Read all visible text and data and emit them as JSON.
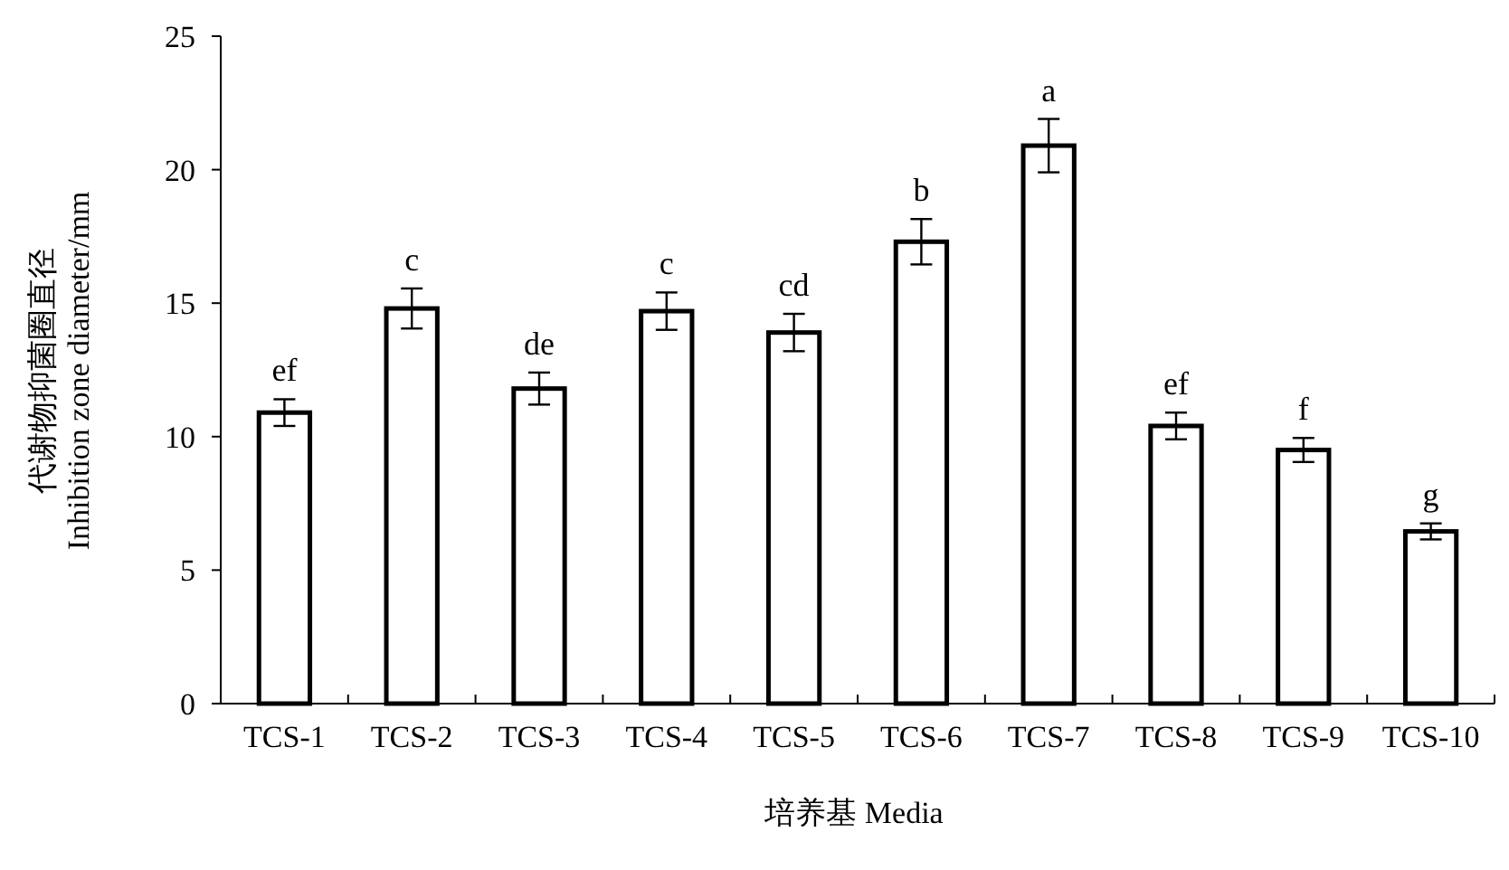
{
  "chart_data": {
    "type": "bar",
    "xlabel": "培养基 Media",
    "ylabel": "代谢物抑菌圈直径\nInhibition zone diameter/mm",
    "categories": [
      "TCS-1",
      "TCS-2",
      "TCS-3",
      "TCS-4",
      "TCS-5",
      "TCS-6",
      "TCS-7",
      "TCS-8",
      "TCS-9",
      "TCS-10"
    ],
    "values": [
      10.9,
      14.8,
      11.8,
      14.7,
      13.9,
      17.3,
      20.9,
      10.4,
      9.5,
      6.45
    ],
    "errors": [
      0.5,
      0.75,
      0.6,
      0.7,
      0.7,
      0.85,
      1.0,
      0.5,
      0.45,
      0.3
    ],
    "color": "#ffffff",
    "ylim": [
      0,
      25
    ],
    "yticks": [
      0,
      5,
      10,
      15,
      20,
      25
    ],
    "annotations": [
      {
        "text": "ef",
        "x": "TCS-1",
        "y": 11.4
      },
      {
        "text": "c",
        "x": "TCS-2",
        "y": 15.55
      },
      {
        "text": "de",
        "x": "TCS-3",
        "y": 12.4
      },
      {
        "text": "c",
        "x": "TCS-4",
        "y": 15.4
      },
      {
        "text": "cd",
        "x": "TCS-5",
        "y": 14.6
      },
      {
        "text": "b",
        "x": "TCS-6",
        "y": 18.15
      },
      {
        "text": "a",
        "x": "TCS-7",
        "y": 21.9
      },
      {
        "text": "ef",
        "x": "TCS-8",
        "y": 10.9
      },
      {
        "text": "f",
        "x": "TCS-9",
        "y": 9.95
      },
      {
        "text": "g",
        "x": "TCS-10",
        "y": 6.75
      }
    ]
  }
}
